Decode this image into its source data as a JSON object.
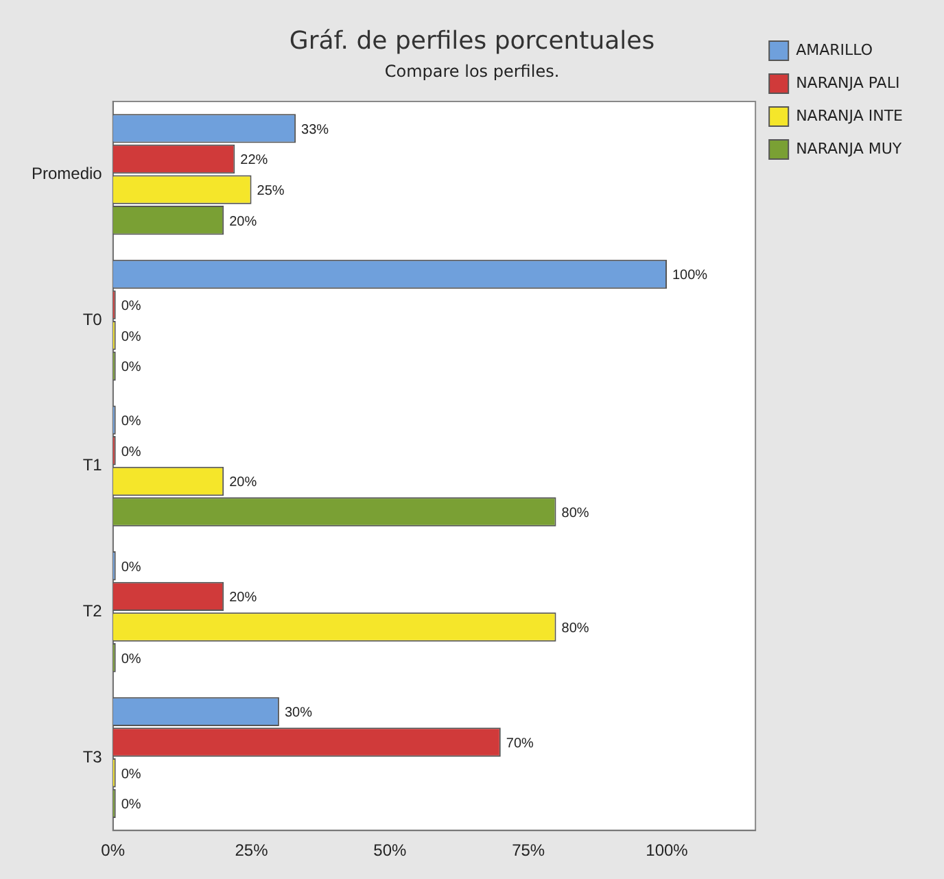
{
  "chart_data": {
    "type": "bar",
    "orientation": "horizontal",
    "title": "Gráf. de perfiles porcentuales",
    "subtitle": "Compare los perfiles.",
    "categories": [
      "Promedio",
      "T0",
      "T1",
      "T2",
      "T3"
    ],
    "series": [
      {
        "name": "AMARILLO",
        "color": "#6fa0dc",
        "values": [
          33,
          100,
          0,
          0,
          30
        ],
        "value_labels": [
          "33%",
          "100%",
          "0%",
          "0%",
          "30%"
        ]
      },
      {
        "name": "NARANJA PALI",
        "color": "#d03a3a",
        "values": [
          22,
          0,
          0,
          20,
          70
        ],
        "value_labels": [
          "22%",
          "0%",
          "0%",
          "20%",
          "70%"
        ]
      },
      {
        "name": "NARANJA INTE",
        "color": "#f5e62a",
        "values": [
          25,
          0,
          20,
          80,
          0
        ],
        "value_labels": [
          "25%",
          "0%",
          "20%",
          "80%",
          "0%"
        ]
      },
      {
        "name": "NARANJA MUY",
        "color": "#7aa034",
        "values": [
          20,
          0,
          80,
          0,
          0
        ],
        "value_labels": [
          "20%",
          "0%",
          "80%",
          "0%",
          "0%"
        ]
      }
    ],
    "xlim": [
      0,
      116
    ],
    "xticks": [
      {
        "value": 0,
        "label": "0%"
      },
      {
        "value": 25,
        "label": "25%"
      },
      {
        "value": 50,
        "label": "50%"
      },
      {
        "value": 75,
        "label": "75%"
      },
      {
        "value": 100,
        "label": "100%"
      }
    ],
    "grid": false,
    "legend": "top right"
  }
}
